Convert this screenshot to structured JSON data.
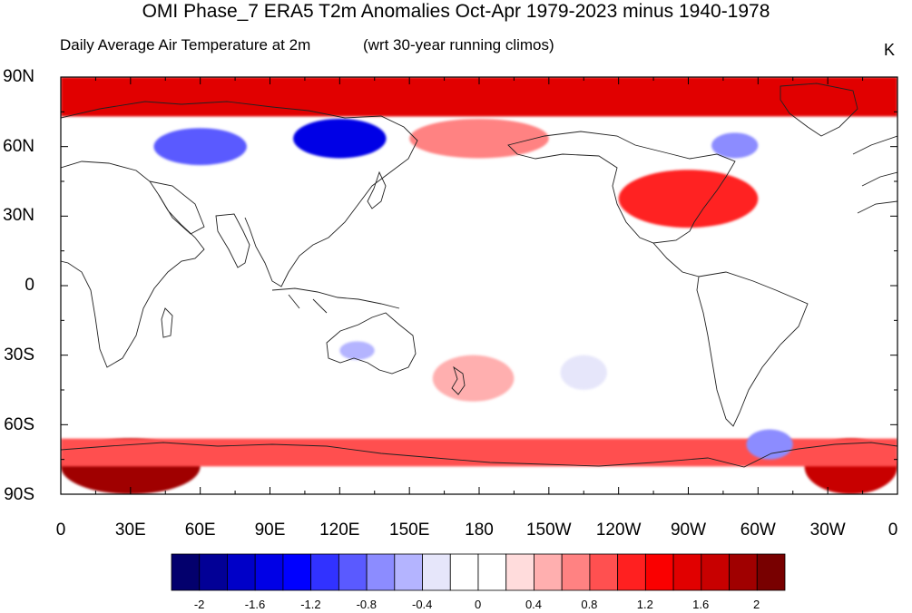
{
  "title": "OMI Phase_7 ERA5 T2m Anomalies Oct-Apr 1979-2023 minus 1940-1978",
  "subtitle_left": "Daily Average Air Temperature at 2m",
  "subtitle_right": "(wrt 30-year running climos)",
  "units": "K",
  "map": {
    "projection": "cylindrical equidistant",
    "center_longitude": 180,
    "lon_range": [
      0,
      360
    ],
    "lat_range": [
      -90,
      90
    ],
    "lat_labels": [
      "90N",
      "60N",
      "30N",
      "0",
      "30S",
      "60S",
      "90S"
    ],
    "lon_labels": [
      "0",
      "30E",
      "60E",
      "90E",
      "120E",
      "150E",
      "180",
      "150W",
      "120W",
      "90W",
      "60W",
      "30W",
      "0"
    ],
    "anomaly_regions": [
      {
        "region": "Arctic band",
        "lon": [
          0,
          360
        ],
        "lat": [
          73,
          90
        ],
        "value": 1.4
      },
      {
        "region": "Antarctic coast west",
        "lon": [
          0,
          60
        ],
        "lat": [
          -90,
          -66
        ],
        "value": 1.8
      },
      {
        "region": "Antarctic coast east",
        "lon": [
          320,
          360
        ],
        "lat": [
          -90,
          -66
        ],
        "value": 1.7
      },
      {
        "region": "Antarctic ring",
        "lon": [
          0,
          360
        ],
        "lat": [
          -78,
          -66
        ],
        "value": 0.8
      },
      {
        "region": "Eastern Siberia",
        "lon": [
          100,
          140
        ],
        "lat": [
          55,
          72
        ],
        "value": -1.6
      },
      {
        "region": "Western Siberia",
        "lon": [
          40,
          80
        ],
        "lat": [
          52,
          68
        ],
        "value": -0.9
      },
      {
        "region": "Hudson Bay",
        "lon": [
          280,
          300
        ],
        "lat": [
          55,
          66
        ],
        "value": -0.8
      },
      {
        "region": "Eastern North America",
        "lon": [
          240,
          300
        ],
        "lat": [
          25,
          50
        ],
        "value": 1.1
      },
      {
        "region": "Alaska / Beringia",
        "lon": [
          150,
          210
        ],
        "lat": [
          55,
          72
        ],
        "value": 0.6
      },
      {
        "region": "Weddell Sea",
        "lon": [
          295,
          315
        ],
        "lat": [
          -75,
          -62
        ],
        "value": -0.8
      },
      {
        "region": "Southwest Pacific",
        "lon": [
          160,
          195
        ],
        "lat": [
          -50,
          -30
        ],
        "value": 0.5
      },
      {
        "region": "Australia interior",
        "lon": [
          120,
          135
        ],
        "lat": [
          -32,
          -24
        ],
        "value": -0.6
      },
      {
        "region": "Southeast Pacific",
        "lon": [
          215,
          235
        ],
        "lat": [
          -45,
          -30
        ],
        "value": -0.3
      }
    ]
  },
  "colorbar": {
    "colors": [
      "#03006d",
      "#020096",
      "#0000c8",
      "#0000e6",
      "#0000ff",
      "#3132ff",
      "#5a5aff",
      "#8c8cff",
      "#b4b4ff",
      "#e6e6fa",
      "#ffffff",
      "#ffffff",
      "#ffdcdc",
      "#ffafaf",
      "#ff8282",
      "#ff5050",
      "#ff2020",
      "#fa0000",
      "#e10000",
      "#c80000",
      "#a00000",
      "#780000"
    ],
    "levels": [
      -2.0,
      -1.8,
      -1.6,
      -1.4,
      -1.2,
      -1.0,
      -0.8,
      -0.6,
      -0.4,
      -0.2,
      0.0,
      0.2,
      0.4,
      0.6,
      0.8,
      1.0,
      1.2,
      1.4,
      1.6,
      1.8,
      2.0
    ],
    "labels": [
      "-2",
      "-1.6",
      "-1.2",
      "-0.8",
      "-0.4",
      "0",
      "0.4",
      "0.8",
      "1.2",
      "1.6",
      "2"
    ]
  }
}
